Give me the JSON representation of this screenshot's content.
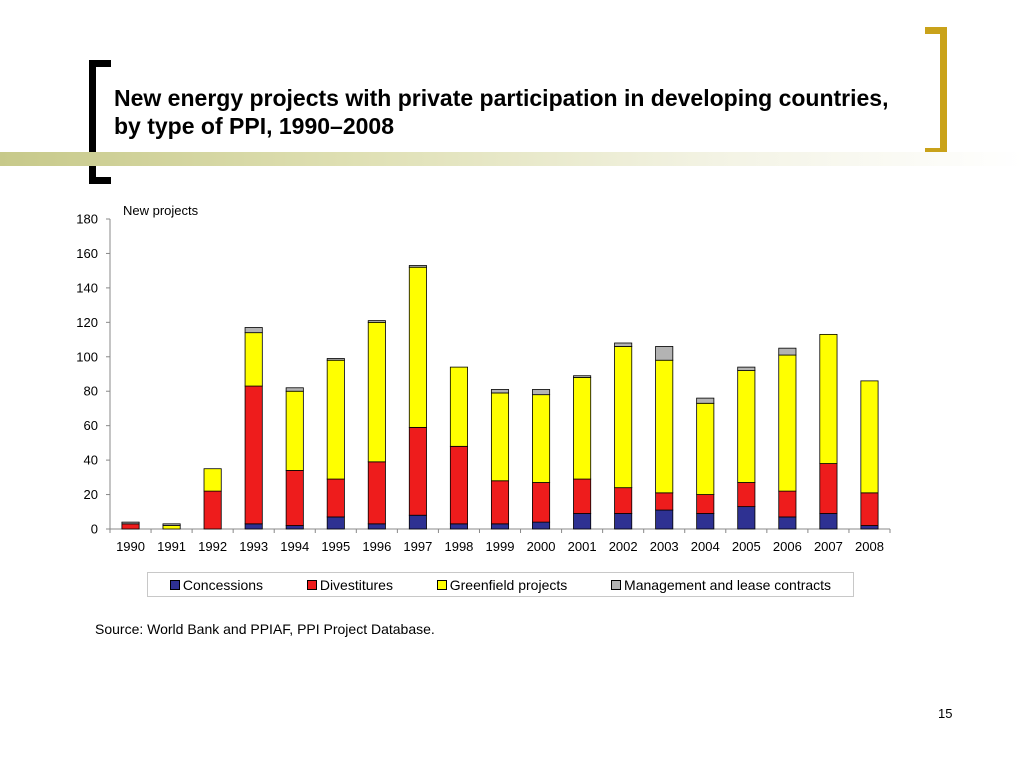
{
  "slide": {
    "title_line1": "New energy projects with private participation in developing countries,",
    "title_line2": "by type of PPI, 1990–2008",
    "source": "Source: World Bank and PPIAF, PPI Project Database.",
    "page_number": "15",
    "colors": {
      "bracket_left": "#000000",
      "bracket_right": "#c9a21a",
      "band": "#c7c98a"
    }
  },
  "chart_data": {
    "type": "bar",
    "stacked": true,
    "ylabel": "New projects",
    "ylim": [
      0,
      180
    ],
    "yticks": [
      0,
      20,
      40,
      60,
      80,
      100,
      120,
      140,
      160,
      180
    ],
    "categories": [
      "1990",
      "1991",
      "1992",
      "1993",
      "1994",
      "1995",
      "1996",
      "1997",
      "1998",
      "1999",
      "2000",
      "2001",
      "2002",
      "2003",
      "2004",
      "2005",
      "2006",
      "2007",
      "2008"
    ],
    "series": [
      {
        "name": "Concessions",
        "color": "#2e3192",
        "values": [
          0,
          0,
          0,
          3,
          2,
          7,
          3,
          8,
          3,
          3,
          4,
          9,
          9,
          11,
          9,
          13,
          7,
          9,
          2
        ]
      },
      {
        "name": "Divestitures",
        "color": "#ee1c1c",
        "values": [
          3,
          0,
          22,
          80,
          32,
          22,
          36,
          51,
          45,
          25,
          23,
          20,
          15,
          10,
          11,
          14,
          15,
          29,
          19
        ]
      },
      {
        "name": "Greenfield projects",
        "color": "#ffff00",
        "values": [
          0,
          2,
          13,
          31,
          46,
          69,
          81,
          93,
          46,
          51,
          51,
          59,
          82,
          77,
          53,
          65,
          79,
          75,
          65
        ]
      },
      {
        "name": "Management and lease contracts",
        "color": "#b3b3b3",
        "values": [
          1,
          1,
          0,
          3,
          2,
          1,
          1,
          1,
          0,
          2,
          3,
          1,
          2,
          8,
          3,
          2,
          4,
          0,
          0
        ]
      }
    ],
    "legend_position": "bottom",
    "grid": false
  }
}
